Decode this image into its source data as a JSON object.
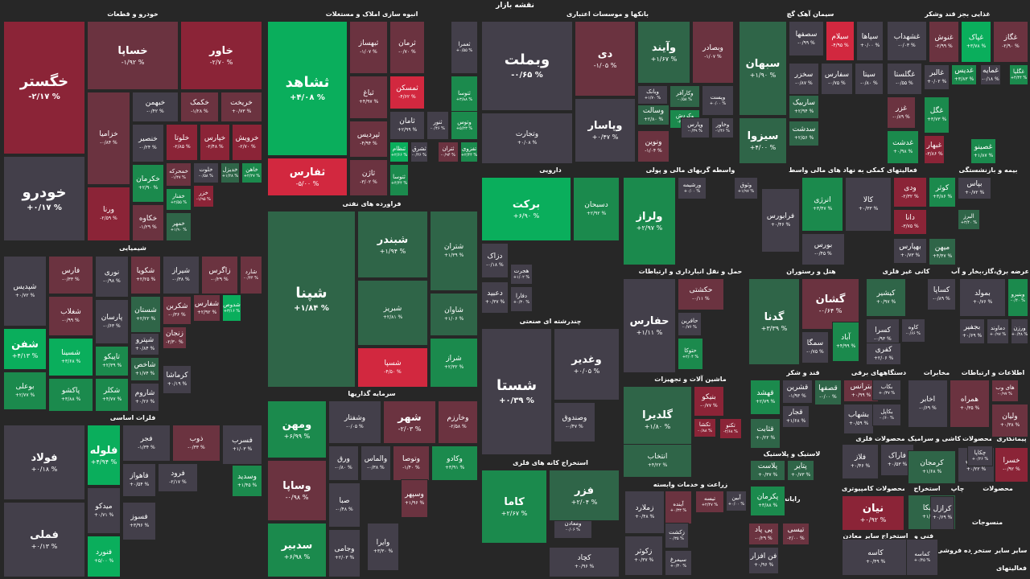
{
  "title": "نقشه بازار",
  "colors": {
    "background": "#272727",
    "strong_positive": "#0aae5c",
    "positive": "#1b8a4d",
    "weak_positive": "#2f6548",
    "neutral": "#433f4a",
    "weak_negative": "#6b3340",
    "negative": "#8b2437",
    "strong_negative": "#d2283f"
  },
  "sectors": [
    "خودرو و قطعات",
    "انبوه سازی املاک و مستغلات",
    "بانکها و موسسات اعتباری",
    "سیمان آهک گچ",
    "غذایی بجز قند وشکر",
    "شیمیایی",
    "فراورده های نفتی",
    "دارویی",
    "واسطه گریهای مالی و پولی",
    "فعالیتهای کمکی به نهاد های مالی واسط",
    "بیمه و بازنشستگی",
    "فلزات اساسی",
    "حمل و نقل انبارداری و ارتباطات",
    "هتل و رستوران",
    "کانی غیر فلزی",
    "عرضه برق،گاز،بخار و آب",
    "چندرشته ای صنعتی",
    "سرمایه گذاریها",
    "ماشین آلات و تجهیزات",
    "قند و شکر",
    "دستگاههای برقی",
    "مخابرات",
    "اطلاعات و ارتباطات",
    "استخراج کانه های فلزی",
    "لاستیک و پلاستیک",
    "محصولات فلزی",
    "کاشی و سرامیک",
    "محصولات",
    "پیمانکاری",
    "زراعت و خدمات وابسته",
    "رایانه",
    "محصولات کامپیوتری",
    "استخراج",
    "چاپ",
    "محصولات",
    "منسوجات",
    "فنی و",
    "استخراج سایر معادن",
    "ساير",
    "ساير",
    "استخر",
    "خرده فروشی",
    "فعالیتهای"
  ],
  "tiles": [
    {
      "s": "خگستر",
      "c": "-۲/۱۷ %"
    },
    {
      "s": "خساپا",
      "c": "-۱/۹۲ %"
    },
    {
      "s": "خاور",
      "c": "-۲/۷۰ %"
    },
    {
      "s": "خودرو",
      "c": "+۰/۱۷ %"
    },
    {
      "s": "خزامیا",
      "c": "-۰/۸۴ %"
    },
    {
      "s": "ورنا",
      "c": "-۲/۵۹ %"
    },
    {
      "s": "خبهمن",
      "c": "-۰/۴۲ %"
    },
    {
      "s": "خکمک",
      "c": "-۱/۲۸ %"
    },
    {
      "s": "خریخت",
      "c": "+۰/۷۳ %"
    },
    {
      "s": "خنصیر",
      "c": "-۰/۲۴ %"
    },
    {
      "s": "خلوتا",
      "c": "-۲/۸۵ %"
    },
    {
      "s": "خپارس",
      "c": "-۲/۴۸ %"
    },
    {
      "s": "خرویش",
      "c": "-۲/۷۰ %"
    },
    {
      "s": "خکرمان",
      "c": "+۲/۹۰ %"
    },
    {
      "s": "خمحرکه",
      "c": "-۱/۴۷ %"
    },
    {
      "s": "خلوت",
      "c": "-۰/۵۸ %"
    },
    {
      "s": "خدیزل",
      "c": "+۱/۲۸ %"
    },
    {
      "s": "خاهن",
      "c": "+۲/۲۷ %"
    },
    {
      "s": "خفنار",
      "c": "+۲/۵۵ %"
    },
    {
      "s": "خکاوه",
      "c": "-۱/۲۹ %"
    },
    {
      "s": "خمهر",
      "c": "+۱/۹۰ %"
    },
    {
      "s": "خزر",
      "c": "-۱/۹۵ %"
    },
    {
      "s": "ثشاهد",
      "c": "+۴/۰۸ %"
    },
    {
      "s": "ثبهساز",
      "c": "-۱/۰۷ %"
    },
    {
      "s": "ثرمان",
      "c": "-۰/۷۰ %"
    },
    {
      "s": "ثعمرا",
      "c": "+۰/۵۵ %"
    },
    {
      "s": "ثباغ",
      "c": "+۴/۹۷ %"
    },
    {
      "s": "ثمسکن",
      "c": "-۴/۶۲ %"
    },
    {
      "s": "ثتوسا",
      "c": "+۳/۸۸ %"
    },
    {
      "s": "ثامان",
      "c": "+۲/۹۹ %"
    },
    {
      "s": "ثنور",
      "c": "-۰/۴۶ %"
    },
    {
      "s": "وتوس",
      "c": "+۵/۲۳ %"
    },
    {
      "s": "ثپردیس",
      "c": "-۴/۹۴ %"
    },
    {
      "s": "ثنظام",
      "c": "+۲/۶۶ %"
    },
    {
      "s": "ثشرق",
      "c": "-۰/۴۶ %"
    },
    {
      "s": "ثتران",
      "c": "-۰/۹۴ %"
    },
    {
      "s": "تفزوی",
      "c": "+۲/۴۴ %"
    },
    {
      "s": "ثاخت",
      "c": "-۰/۰۶ %"
    },
    {
      "s": "ثفارس",
      "c": "-۵/۰۰ %"
    },
    {
      "s": "ثاژن",
      "c": "-۳/۰۲ %"
    },
    {
      "s": "ثتوسا",
      "c": "+۴/۴۴ %"
    },
    {
      "s": "وبملت",
      "c": "-۰/۶۵ %"
    },
    {
      "s": "دی",
      "c": "-۱/۰۵ %"
    },
    {
      "s": "وآیند",
      "c": "+۱/۶۷ %"
    },
    {
      "s": "وبصادر",
      "c": "-۱/۰۷ %"
    },
    {
      "s": "وتجارت",
      "c": "+۰/۰۸ %"
    },
    {
      "s": "وپاسار",
      "c": "+۰/۴۷ %"
    },
    {
      "s": "وبانک",
      "c": "+۱/۷۰ %"
    },
    {
      "s": "وکارآفر",
      "c": "-۰/۵۸ %"
    },
    {
      "s": "وپست",
      "c": "+۰/۰۰ %"
    },
    {
      "s": "وسالت",
      "c": "+۲/۸۰ %"
    },
    {
      "s": "وکردش",
      "c": "-۲/۰۰ %"
    },
    {
      "s": "ونوین",
      "c": "-۱/۰۴ %"
    },
    {
      "s": "وپارس",
      "c": "-۰/۳۹ %"
    },
    {
      "s": "وخاور",
      "c": "-۱/۴۶ %"
    },
    {
      "s": "سبهان",
      "c": "+۱/۹۰ %"
    },
    {
      "s": "سیزوا",
      "c": "+۴/۰۰ %"
    },
    {
      "s": "سصفها",
      "c": "-۰/۹۹ %"
    },
    {
      "s": "سیلام",
      "c": "-۴/۹۵ %"
    },
    {
      "s": "سپاها",
      "c": "+۰/۰۰ %"
    },
    {
      "s": "سخزر",
      "c": "-۰/۸۷ %"
    },
    {
      "s": "سفارس",
      "c": "-۰/۷۵ %"
    },
    {
      "s": "سیتا",
      "c": "-۰/۸۰ %"
    },
    {
      "s": "ساربیک",
      "c": "+۲/۹۴ %"
    },
    {
      "s": "سدشت",
      "c": "+۲/۵۶ %"
    },
    {
      "s": "غشهداب",
      "c": "-۰/۰۳ %"
    },
    {
      "s": "غنوش",
      "c": "-۲/۹۹ %"
    },
    {
      "s": "غپاک",
      "c": "+۳/۷۸ %"
    },
    {
      "s": "غگاز",
      "c": "-۲/۹۰ %"
    },
    {
      "s": "غگلستا",
      "c": "-۰/۵۵ %"
    },
    {
      "s": "غالبر",
      "c": "+۰/۰۲ %"
    },
    {
      "s": "غدیس",
      "c": "+۳/۸۳ %"
    },
    {
      "s": "غمایه",
      "c": "-۰/۱۸ %"
    },
    {
      "s": "غگلپا",
      "c": "+۴/۴۴ %"
    },
    {
      "s": "غزر",
      "c": "-۰/۸۹ %"
    },
    {
      "s": "غگل",
      "c": "+۳/۷۳ %"
    },
    {
      "s": "غدشت",
      "c": "+۰/۹۸ %"
    },
    {
      "s": "غبهار",
      "c": "-۳/۸۶ %"
    },
    {
      "s": "غصینو",
      "c": "+۱/۸۷ %"
    },
    {
      "s": "شپدیس",
      "c": "+۰/۷۲ %"
    },
    {
      "s": "فارس",
      "c": "-۰/۳۳ %"
    },
    {
      "s": "نوری",
      "c": "-۰/۹۸ %"
    },
    {
      "s": "شکویا",
      "c": "+۲/۲۵ %"
    },
    {
      "s": "شیراز",
      "c": "-۰/۳۸ %"
    },
    {
      "s": "زاگرس",
      "c": "-۰/۲۹ %"
    },
    {
      "s": "شارد",
      "c": "-۰/۴۴ %"
    },
    {
      "s": "شغلاب",
      "c": "-۰/۹۹ %"
    },
    {
      "s": "پارسان",
      "c": "-۰/۶۳ %"
    },
    {
      "s": "شستان",
      "c": "+۲/۲۲ %"
    },
    {
      "s": "شکربن",
      "c": "-۰/۳۶ %"
    },
    {
      "s": "شفارس",
      "c": "+۲/۹۲ %"
    },
    {
      "s": "شدوص",
      "c": "+۳/۱۶ %"
    },
    {
      "s": "شفن",
      "c": "+۴/۱۳ %"
    },
    {
      "s": "شسینا",
      "c": "+۳/۶۸ %"
    },
    {
      "s": "تاپیکو",
      "c": "+۲/۳۹ %"
    },
    {
      "s": "شپترو",
      "c": "+۰/۸۴ %"
    },
    {
      "s": "شاخص",
      "c": "+۱/۷۴ %"
    },
    {
      "s": "زنجان",
      "c": "-۲/۳۰ %"
    },
    {
      "s": "بوعلی",
      "c": "+۲/۷۷ %"
    },
    {
      "s": "پاکشو",
      "c": "+۳/۸۸ %"
    },
    {
      "s": "شکلر",
      "c": "+۴/۷۷ %"
    },
    {
      "s": "شاروم",
      "c": "+۰/۲۶ %"
    },
    {
      "s": "کرماشا",
      "c": "+۰/۱۹ %"
    },
    {
      "s": "شپنا",
      "c": "+۱/۸۴ %"
    },
    {
      "s": "شبندر",
      "c": "+۱/۹۴ %"
    },
    {
      "s": "شتران",
      "c": "+۱/۳۹ %"
    },
    {
      "s": "شبریز",
      "c": "+۲/۸۱ %"
    },
    {
      "s": "شاوان",
      "c": "+۱/۰۶ %"
    },
    {
      "s": "شسپا",
      "c": "-۴/۵۰ %"
    },
    {
      "s": "شراز",
      "c": "+۲/۳۲ %"
    },
    {
      "s": "فولاد",
      "c": "+۰/۱۸ %"
    },
    {
      "s": "فملی",
      "c": "+۰/۱۳ %"
    },
    {
      "s": "فلوله",
      "c": "+۴/۹۴ %"
    },
    {
      "s": "میدکو",
      "c": "+۰/۷۱ %"
    },
    {
      "s": "فنورد",
      "c": "+۵/۰۰ %"
    },
    {
      "s": "فجر",
      "c": "-۱/۳۴ %"
    },
    {
      "s": "ذوب",
      "c": "-۰/۳۳ %"
    },
    {
      "s": "فسرب",
      "c": "+۱/۰۳ %"
    },
    {
      "s": "فاهواز",
      "c": "+۰/۵۴ %"
    },
    {
      "s": "فسوز",
      "c": "+۳/۹۶ %"
    },
    {
      "s": "فرود",
      "c": "-۲/۱۷ %"
    },
    {
      "s": "وسديد",
      "c": "+۱/۴۵ %"
    },
    {
      "s": "ومهن",
      "c": "+۶/۹۹ %"
    },
    {
      "s": "وساپا",
      "c": "-۰/۹۸ %"
    },
    {
      "s": "سدبیر",
      "c": "+۶/۹۸ %"
    },
    {
      "s": "وشفتار",
      "c": "-۰/۰۵ %"
    },
    {
      "s": "شهر",
      "c": "-۲/۰۳ %"
    },
    {
      "s": "وخارزم",
      "c": "-۲/۵۸ %"
    },
    {
      "s": "ورق",
      "c": "-۰/۸۰ %"
    },
    {
      "s": "والماس",
      "c": "-۰/۳۸ %"
    },
    {
      "s": "وتوصا",
      "c": "-۱/۴۰ %"
    },
    {
      "s": "وکادو",
      "c": "+۳/۹۱ %"
    },
    {
      "s": "صبا",
      "c": "-۰/۴۸ %"
    },
    {
      "s": "وسپهر",
      "c": "+۱/۹۶ %"
    },
    {
      "s": "وجامی",
      "c": "+۲/۰۳ %"
    },
    {
      "s": "وایرا",
      "c": "+۳/۳۰ %"
    },
    {
      "s": "برکت",
      "c": "+۶/۹۰ %"
    },
    {
      "s": "دسبحان",
      "c": "+۲/۹۲ %"
    },
    {
      "s": "ولراز",
      "c": "+۲/۹۷ %"
    },
    {
      "s": "ورشیمه",
      "c": "+۰/۰۰ %"
    },
    {
      "s": "وثوق",
      "c": "+۱/۹۷ %"
    },
    {
      "s": "دزاک",
      "c": "-۰/۱۸ %"
    },
    {
      "s": "هجرت",
      "c": "+۱/۰۲ %"
    },
    {
      "s": "دعبید",
      "c": "+۰/۳۷ %"
    },
    {
      "s": "دفارا",
      "c": "+۰/۳۰ %"
    },
    {
      "s": "انرژی",
      "c": "+۳/۴۷ %"
    },
    {
      "s": "کالا",
      "c": "+۰/۳۳ %"
    },
    {
      "s": "فرابورس",
      "c": "+۰/۴۶ %"
    },
    {
      "s": "بورس",
      "c": "-۰/۴۵ %"
    },
    {
      "s": "ودی",
      "c": "-۲/۳۲ %"
    },
    {
      "s": "کوثر",
      "c": "+۳/۸۶ %"
    },
    {
      "s": "بپاس",
      "c": "+۰/۷۲ %"
    },
    {
      "s": "دانا",
      "c": "-۳/۷۵ %"
    },
    {
      "s": "بهپارس",
      "c": "+۰/۷۳ %"
    },
    {
      "s": "میهن",
      "c": "+۴/۴۷ %"
    },
    {
      "s": "البرز",
      "c": "+۳/۴۰ %"
    },
    {
      "s": "شستا",
      "c": "+۰/۳۹ %"
    },
    {
      "s": "وغدیر",
      "c": "+۰/۰۵ %"
    },
    {
      "s": "وصندوق",
      "c": "-۰/۴۷ %"
    },
    {
      "s": "ومعادن",
      "c": "-۰/۰۶ %"
    },
    {
      "s": "حفارس",
      "c": "+۱/۱۱ %"
    },
    {
      "s": "حکشتی",
      "c": "-۰/۱۱ %"
    },
    {
      "s": "حافرین",
      "c": "-۰/۷۶ %"
    },
    {
      "s": "حتوکا",
      "c": "+۲/۰۴ %"
    },
    {
      "s": "گدنا",
      "c": "+۳/۳۹ %"
    },
    {
      "s": "گشان",
      "c": "-۰/۶۴ %"
    },
    {
      "s": "سمگا",
      "c": "-۰/۷۵ %"
    },
    {
      "s": "آباد",
      "c": "+۴/۹۹ %"
    },
    {
      "s": "کیشیر",
      "c": "+۰/۹۷ %"
    },
    {
      "s": "کساپا",
      "c": "-۰/۸۹ %"
    },
    {
      "s": "کسرا",
      "c": "-۰/۹۳ %"
    },
    {
      "s": "کفری",
      "c": "+۲/۰۶ %"
    },
    {
      "s": "کاوه",
      "c": "-۰/۶۶ %"
    },
    {
      "s": "بمولد",
      "c": "+۰/۷۶ %"
    },
    {
      "s": "وبنیرو",
      "c": "-۰/۴۰ %"
    },
    {
      "s": "بجفیر",
      "c": "+۰/۶۹ %"
    },
    {
      "s": "دماوند",
      "c": "+۰/۹۷ %"
    },
    {
      "s": "ورزن",
      "c": "+۰/۳۸ %"
    },
    {
      "s": "کاما",
      "c": "+۲/۶۷ %"
    },
    {
      "s": "فزر",
      "c": "+۲/۰۴ %"
    },
    {
      "s": "کچاد",
      "c": "+۰/۹۶ %"
    },
    {
      "s": "گلدیرا",
      "c": "+۱/۸۰ %"
    },
    {
      "s": "بنیکو",
      "c": "-۰/۷۷ %"
    },
    {
      "s": "تکشا",
      "c": "-۰/۸۸ %"
    },
    {
      "s": "تکنو",
      "c": "-۲/۶۸ %"
    },
    {
      "s": "انتخاب",
      "c": "+۴/۲۲ %"
    },
    {
      "s": "قهشد",
      "c": "+۲/۷۹ %"
    },
    {
      "s": "قشرین",
      "c": "-۱/۹۳ %"
    },
    {
      "s": "قصفها",
      "c": "-۰/۰۰ %"
    },
    {
      "s": "قجار",
      "c": "+۱/۶۸ %"
    },
    {
      "s": "قثابت",
      "c": "+۰/۲۲ %"
    },
    {
      "s": "پلاست",
      "c": "+۰/۳۷ %"
    },
    {
      "s": "پتایر",
      "c": "+۰/۷۳ %"
    },
    {
      "s": "پکرمان",
      "c": "+۳/۸۸ %"
    },
    {
      "s": "بترانس",
      "c": "+۰/۹۹ %"
    },
    {
      "s": "بکاب",
      "c": "+۰/۳۷ %"
    },
    {
      "s": "بشهاب",
      "c": "+۰/۵۹ %"
    },
    {
      "s": "بکاپل",
      "c": "-۰/۶۰ %"
    },
    {
      "s": "اخابر",
      "c": "-۰/۶۹ %"
    },
    {
      "s": "همراه",
      "c": "+۰/۳۵ %"
    },
    {
      "s": "های وب",
      "c": "-۰/۹۷ %"
    },
    {
      "s": "ولیان",
      "c": "+۰/۳۸ %"
    },
    {
      "s": "زملارد",
      "c": "+۰/۴۸ %"
    },
    {
      "s": "تیسه",
      "c": "+۲/۴۷ %"
    },
    {
      "s": "آینده",
      "c": "+۰/۳۳ %"
    },
    {
      "s": "آبین",
      "c": "+۰/۰۰ %"
    },
    {
      "s": "زکشت",
      "c": "-۰/۳۵ %"
    },
    {
      "s": "سیمرغ",
      "c": "+۰/۳۰ %"
    },
    {
      "s": "زکوثر",
      "c": "+۰/۳۷ %"
    },
    {
      "s": "پی پاد",
      "c": "-۰/۲۹ %"
    },
    {
      "s": "فن افزار",
      "c": "+۰/۹۶ %"
    },
    {
      "s": "تیسی",
      "c": "-۲/۰۰ %"
    },
    {
      "s": "فلاز",
      "c": "+۰/۴۶ %"
    },
    {
      "s": "فاراک",
      "c": "+۰/۵۳ %"
    },
    {
      "s": "کاسه",
      "c": "+۰/۴۹ %"
    },
    {
      "s": "کرمجان",
      "c": "+۱/۶۸ %"
    },
    {
      "s": "کرتیکا",
      "c": "+۱/۰۵ %"
    },
    {
      "s": "کرازل",
      "c": "+۰/۶۹ %"
    },
    {
      "s": "نیان",
      "c": "+۰/۹۲ %"
    },
    {
      "s": "کمریان",
      "c": "+۰/۲۲ %"
    },
    {
      "s": "خسرا",
      "c": "-۰/۹۲ %"
    },
    {
      "s": "چکاپا",
      "c": "+۰/۲۶ %"
    },
    {
      "s": "کماسه",
      "c": "+۰/۴۵ %"
    }
  ]
}
